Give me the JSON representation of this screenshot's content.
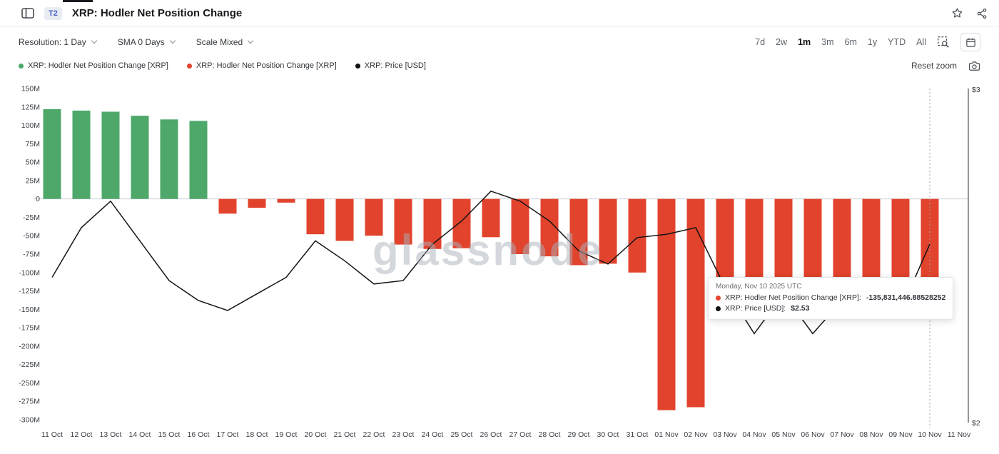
{
  "header": {
    "badge": "T2",
    "title": "XRP: Hodler Net Position Change"
  },
  "toolbar": {
    "dropdowns": [
      {
        "label": "Resolution: 1 Day"
      },
      {
        "label": "SMA 0 Days"
      },
      {
        "label": "Scale Mixed"
      }
    ],
    "ranges": [
      "7d",
      "2w",
      "1m",
      "3m",
      "6m",
      "1y",
      "YTD",
      "All"
    ],
    "active_range": "1m"
  },
  "legend": {
    "items": [
      {
        "label": "XRP: Hodler Net Position Change [XRP]",
        "color": "#4ea86a"
      },
      {
        "label": "XRP: Hodler Net Position Change [XRP]",
        "color": "#e2432c"
      },
      {
        "label": "XRP: Price [USD]",
        "color": "#111111"
      }
    ],
    "reset_zoom": "Reset zoom"
  },
  "tooltip": {
    "date": "Monday, Nov 10 2025 UTC",
    "rows": [
      {
        "color": "#e2432c",
        "label": "XRP: Hodler Net Position Change [XRP]:",
        "value": "-135,831,446.88528252"
      },
      {
        "color": "#111111",
        "label": "XRP: Price [USD]:",
        "value": "$2.53"
      }
    ]
  },
  "watermark": "glassnode",
  "icons": {
    "panel_toggle": "window-split-rect",
    "star": "star-outline",
    "share": "share-nodes",
    "zoom_area": "zoom-selection-dashed-magnifier",
    "calendar": "calendar-box",
    "camera": "camera",
    "chevron": "chevron-down"
  },
  "chart_data": {
    "type": "bar",
    "title": "XRP: Hodler Net Position Change",
    "categories": [
      "11 Oct",
      "12 Oct",
      "13 Oct",
      "14 Oct",
      "15 Oct",
      "16 Oct",
      "17 Oct",
      "18 Oct",
      "19 Oct",
      "20 Oct",
      "21 Oct",
      "22 Oct",
      "23 Oct",
      "24 Oct",
      "25 Oct",
      "26 Oct",
      "27 Oct",
      "28 Oct",
      "29 Oct",
      "30 Oct",
      "31 Oct",
      "01 Nov",
      "02 Nov",
      "03 Nov",
      "04 Nov",
      "05 Nov",
      "06 Nov",
      "07 Nov",
      "08 Nov",
      "09 Nov",
      "10 Nov"
    ],
    "x_axis_labels": [
      "11 Oct",
      "12 Oct",
      "13 Oct",
      "14 Oct",
      "15 Oct",
      "16 Oct",
      "17 Oct",
      "18 Oct",
      "19 Oct",
      "20 Oct",
      "21 Oct",
      "22 Oct",
      "23 Oct",
      "24 Oct",
      "25 Oct",
      "26 Oct",
      "27 Oct",
      "28 Oct",
      "29 Oct",
      "30 Oct",
      "31 Oct",
      "01 Nov",
      "02 Nov",
      "03 Nov",
      "04 Nov",
      "05 Nov",
      "06 Nov",
      "07 Nov",
      "08 Nov",
      "09 Nov",
      "10 Nov",
      "11 Nov"
    ],
    "series": [
      {
        "name": "XRP: Hodler Net Position Change [XRP]",
        "type": "bar",
        "unit": "XRP",
        "values": [
          122000000,
          120000000,
          118500000,
          113000000,
          108000000,
          106000000,
          -20000000,
          -12000000,
          -5000000,
          -48000000,
          -57000000,
          -50000000,
          -62000000,
          -68000000,
          -67000000,
          -52000000,
          -75000000,
          -78000000,
          -90000000,
          -88000000,
          -100000000,
          -287000000,
          -283000000,
          -150000000,
          -152000000,
          -150000000,
          -151000000,
          -150000000,
          -150000000,
          -149000000,
          -135831446.88528252
        ]
      },
      {
        "name": "XRP: Price [USD]",
        "type": "line",
        "unit": "USD",
        "color": "#141414",
        "values": [
          2.43,
          2.58,
          2.66,
          2.54,
          2.42,
          2.36,
          2.33,
          2.38,
          2.43,
          2.54,
          2.48,
          2.41,
          2.42,
          2.53,
          2.6,
          2.69,
          2.66,
          2.6,
          2.51,
          2.47,
          2.55,
          2.56,
          2.58,
          2.4,
          2.26,
          2.38,
          2.26,
          2.36,
          2.32,
          2.33,
          2.53
        ]
      }
    ],
    "left_axis": {
      "min": -300000000,
      "max": 150000000,
      "ticks": [
        {
          "label": "150M",
          "value": 150000000
        },
        {
          "label": "125M",
          "value": 125000000
        },
        {
          "label": "100M",
          "value": 100000000
        },
        {
          "label": "75M",
          "value": 75000000
        },
        {
          "label": "50M",
          "value": 50000000
        },
        {
          "label": "25M",
          "value": 25000000
        },
        {
          "label": "0",
          "value": 0
        },
        {
          "label": "-25M",
          "value": -25000000
        },
        {
          "label": "-50M",
          "value": -50000000
        },
        {
          "label": "-75M",
          "value": -75000000
        },
        {
          "label": "-100M",
          "value": -100000000
        },
        {
          "label": "-125M",
          "value": -125000000
        },
        {
          "label": "-150M",
          "value": -150000000
        },
        {
          "label": "-175M",
          "value": -175000000
        },
        {
          "label": "-200M",
          "value": -200000000
        },
        {
          "label": "-225M",
          "value": -225000000
        },
        {
          "label": "-250M",
          "value": -250000000
        },
        {
          "label": "-275M",
          "value": -275000000
        },
        {
          "label": "-300M",
          "value": -300000000
        }
      ]
    },
    "right_axis": {
      "min": 2,
      "max": 3,
      "ticks": [
        "$3",
        "$2"
      ]
    },
    "bar_colors": {
      "positive": "#4ea86a",
      "negative": "#e2432c"
    },
    "grid": false,
    "crosshair_index": 30
  }
}
